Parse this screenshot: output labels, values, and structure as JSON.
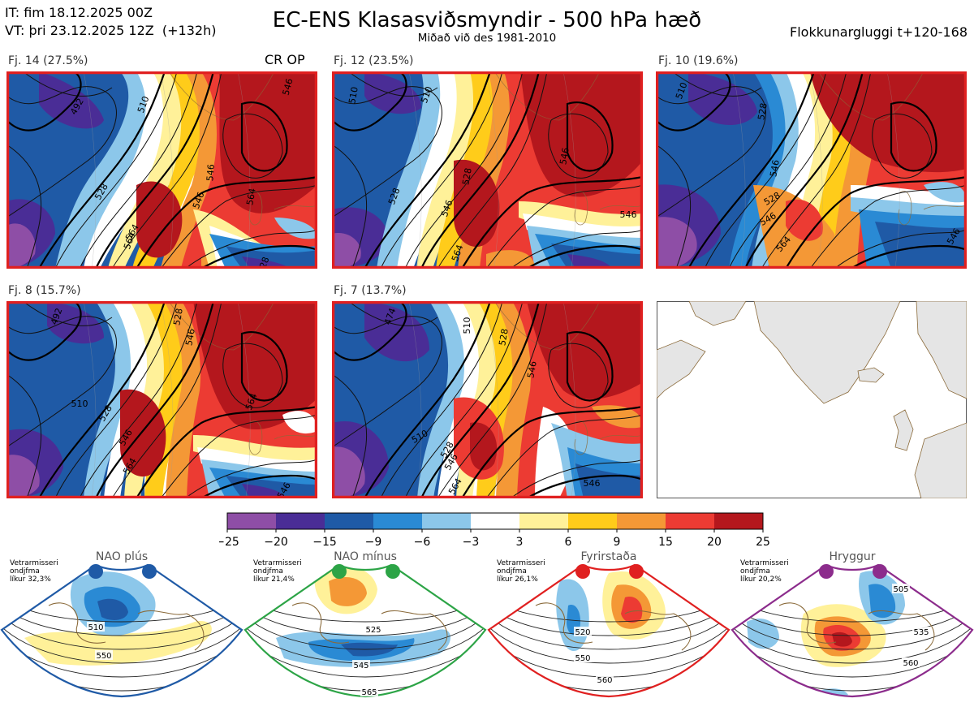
{
  "header": {
    "it": "IT: fim 18.12.2025 00Z",
    "vt": "VT: þri 23.12.2025 12Z  (+132h)",
    "title": "EC-ENS Klasasviðsmyndir - 500 hPa hæð",
    "subtitle": "Miðað við des 1981-2010",
    "window": "Flokkunargluggi t+120-168"
  },
  "colors": {
    "frame": "#e02020",
    "land": "#e5e5e5",
    "coast": "#8a6a3a"
  },
  "panels": [
    {
      "label": "Fj. 14 (27.5%)",
      "tag": "CR OP",
      "contours": [
        "492",
        "510",
        "528",
        "546",
        "546",
        "564",
        "564",
        "528",
        "546",
        "564"
      ]
    },
    {
      "label": "Fj. 12 (23.5%)",
      "contours": [
        "510",
        "528",
        "546",
        "546",
        "546",
        "528",
        "564",
        "510"
      ]
    },
    {
      "label": "Fj. 10 (19.6%)",
      "contours": [
        "510",
        "528",
        "546",
        "528",
        "546",
        "564",
        "546"
      ]
    },
    {
      "label": "Fj. 8 (15.7%)",
      "contours": [
        "492",
        "528",
        "546",
        "510",
        "528",
        "546",
        "564",
        "546",
        "564"
      ]
    },
    {
      "label": "Fj. 7 (13.7%)",
      "contours": [
        "474",
        "510",
        "528",
        "546",
        "510",
        "528",
        "546",
        "564",
        "546"
      ]
    }
  ],
  "chart_data": {
    "type": "heatmap",
    "title": "EC-ENS Klasasviðsmyndir - 500 hPa hæð",
    "colorbar": {
      "ticks": [
        "−25",
        "−20",
        "−15",
        "−9",
        "−6",
        "−3",
        "3",
        "6",
        "9",
        "15",
        "20",
        "25"
      ],
      "bin_edges": [
        -25,
        -20,
        -15,
        -9,
        -6,
        -3,
        3,
        6,
        9,
        15,
        20,
        25
      ],
      "colors": [
        "#8e4ea6",
        "#4a2d96",
        "#1f5aa6",
        "#2a8ad4",
        "#8cc7ea",
        "#ffffff",
        "#fff199",
        "#ffcc1a",
        "#f49836",
        "#ec3b33",
        "#b4171d"
      ]
    },
    "clusters": [
      {
        "name": "Fj. 14",
        "probability_pct": 27.5
      },
      {
        "name": "Fj. 12",
        "probability_pct": 23.5
      },
      {
        "name": "Fj. 10",
        "probability_pct": 19.6
      },
      {
        "name": "Fj. 8",
        "probability_pct": 15.7
      },
      {
        "name": "Fj. 7",
        "probability_pct": 13.7
      }
    ]
  },
  "regimes": [
    {
      "name": "NAO plús",
      "color": "#1f5aa6",
      "note1": "Vetrarmisseri",
      "note2": "ondjfma",
      "note3": "líkur 32,3%",
      "contours": [
        "510",
        "550"
      ]
    },
    {
      "name": "NAO mínus",
      "color": "#2ca446",
      "note1": "Vetrarmisseri",
      "note2": "ondjfma",
      "note3": "líkur 21,4%",
      "contours": [
        "525",
        "545",
        "565"
      ]
    },
    {
      "name": "Fyrirstaða",
      "color": "#e02020",
      "note1": "Vetrarmisseri",
      "note2": "ondjfma",
      "note3": "líkur 26,1%",
      "contours": [
        "520",
        "550",
        "560"
      ]
    },
    {
      "name": "Hryggur",
      "color": "#8c2c8c",
      "note1": "Vetrarmisseri",
      "note2": "ondjfma",
      "note3": "líkur 20,2%",
      "contours": [
        "505",
        "535",
        "560"
      ]
    }
  ]
}
